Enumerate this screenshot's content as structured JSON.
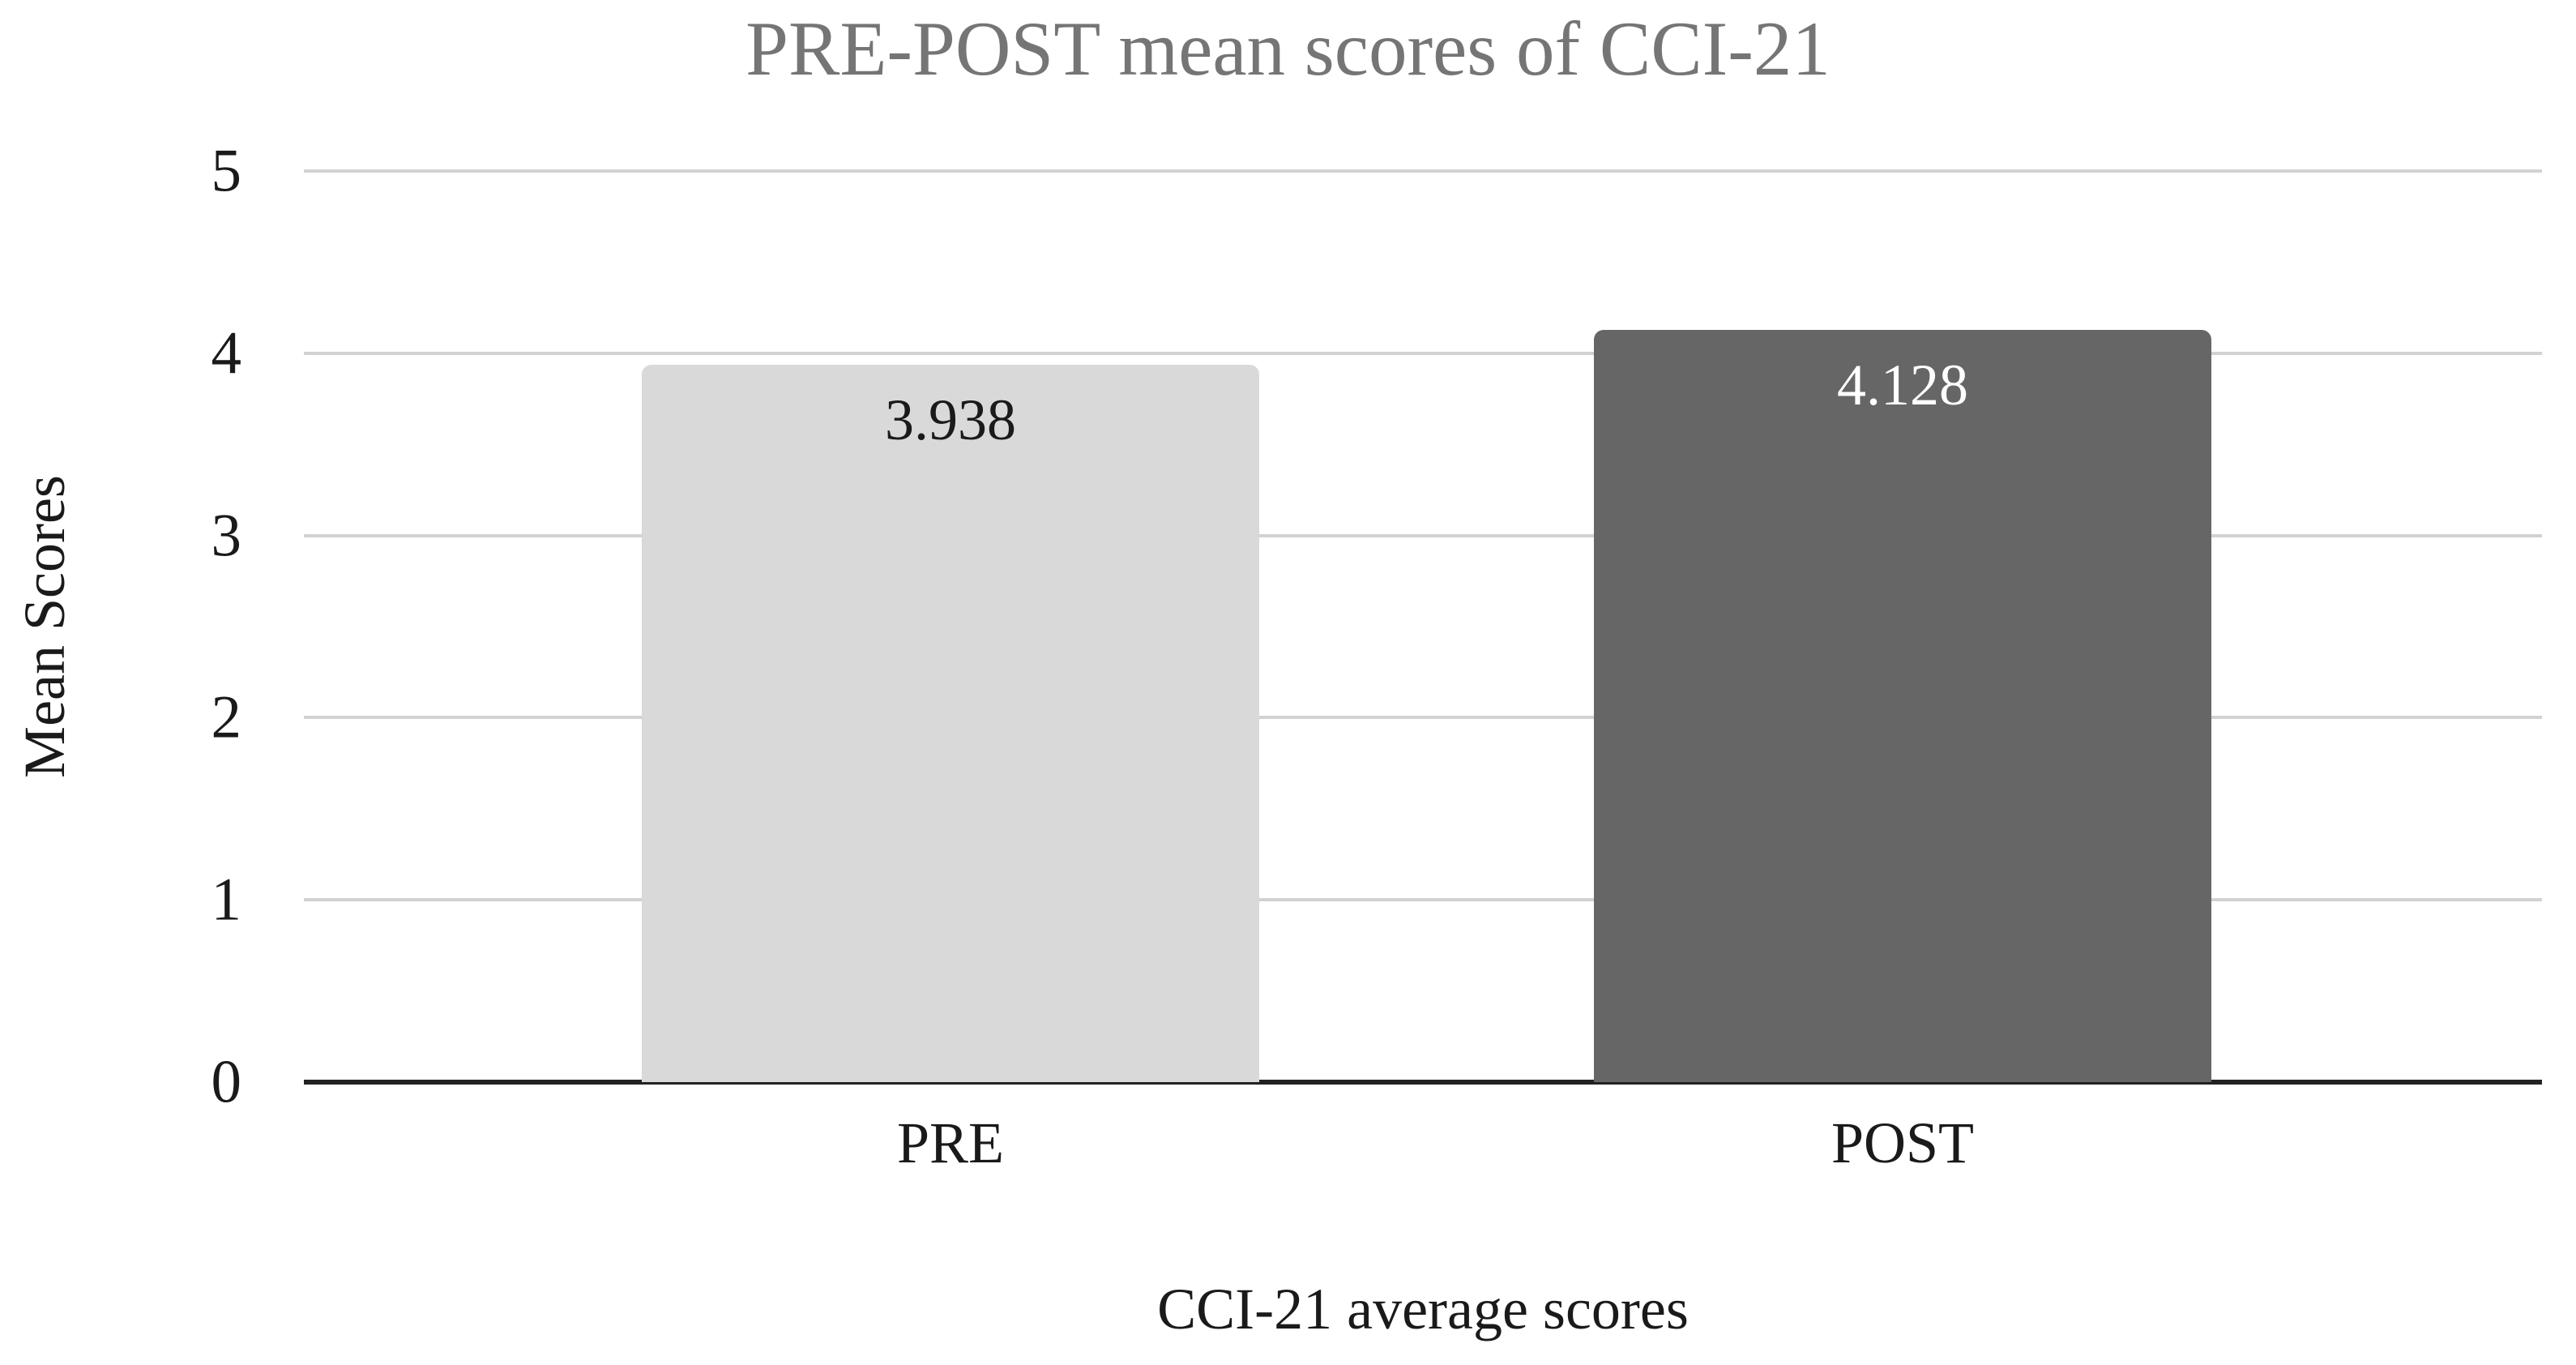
{
  "chart_data": {
    "type": "bar",
    "title": "PRE-POST mean scores of CCI-21",
    "categories": [
      "PRE",
      "POST"
    ],
    "values": [
      3.938,
      4.128
    ],
    "value_labels": [
      "3.938",
      "4.128"
    ],
    "xlabel": "CCI-21 average scores",
    "ylabel": "Mean Scores",
    "ylim": [
      0,
      5
    ],
    "yticks": [
      0,
      1,
      2,
      3,
      4,
      5
    ],
    "grid": true,
    "legend": false,
    "series": [
      {
        "name": "PRE",
        "value": 3.938,
        "bar_color": "#d9d9d9",
        "label_color": "#1a1a1a"
      },
      {
        "name": "POST",
        "value": 4.128,
        "bar_color": "#666666",
        "label_color": "#ffffff"
      }
    ],
    "colors": {
      "background": "#ffffff",
      "title_text": "#757575",
      "axis_text": "#1a1a1a",
      "gridline": "#d2d2d2",
      "baseline": "#222222"
    }
  }
}
